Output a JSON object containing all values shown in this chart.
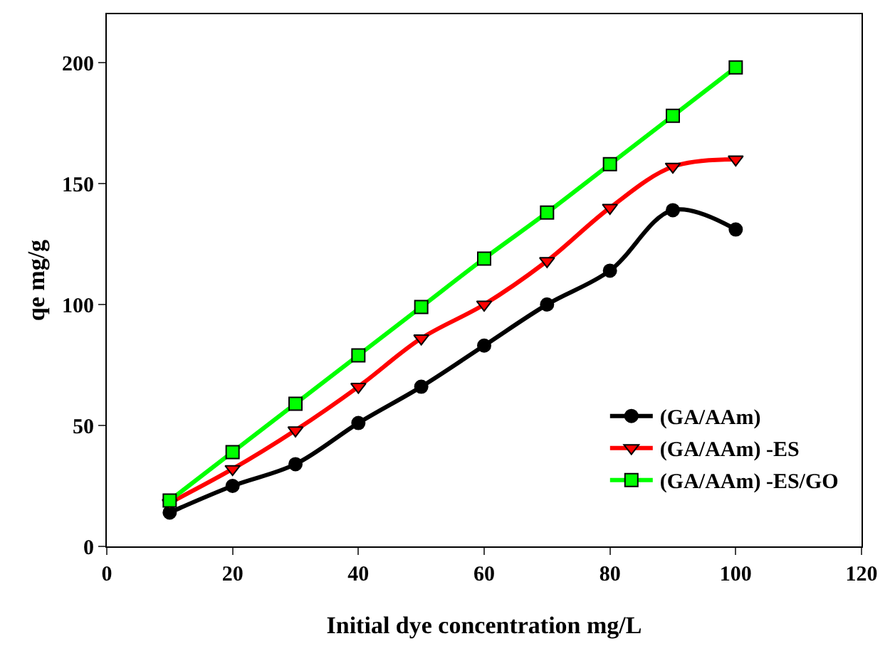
{
  "chart_data": {
    "type": "line",
    "xlabel": "Initial dye concentration mg/L",
    "ylabel": "qe mg/g",
    "x": [
      10,
      20,
      30,
      40,
      50,
      60,
      70,
      80,
      90,
      100
    ],
    "xlim": [
      0,
      120
    ],
    "xticks": [
      0,
      20,
      40,
      60,
      80,
      100,
      120
    ],
    "ylim": [
      0,
      220
    ],
    "yticks": [
      0,
      50,
      100,
      150,
      200
    ],
    "grid": false,
    "legend": "bottom right",
    "line_style": "solid",
    "series": [
      {
        "name": "(GA/AAm)",
        "color": "#000000",
        "marker": "circle",
        "values": [
          14,
          25,
          34,
          51,
          66,
          83,
          100,
          114,
          139,
          131
        ]
      },
      {
        "name": "(GA/AAm) -ES",
        "color": "#ff0000",
        "marker": "triangle",
        "values": [
          18,
          32,
          48,
          66,
          86,
          100,
          118,
          140,
          157,
          160
        ]
      },
      {
        "name": "(GA/AAm) -ES/GO",
        "color": "#00ff00",
        "marker": "square",
        "values": [
          19,
          39,
          59,
          79,
          99,
          119,
          138,
          158,
          178,
          198
        ]
      }
    ]
  }
}
